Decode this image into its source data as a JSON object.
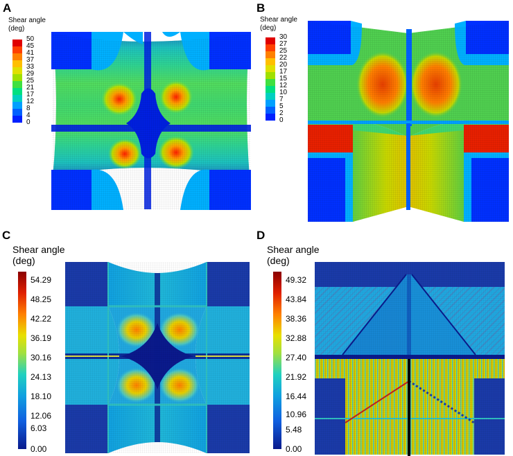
{
  "panels": [
    {
      "letter": "A",
      "title_line1": "Shear angle",
      "title_line2": "(deg)",
      "ticks": [
        "50",
        "45",
        "41",
        "37",
        "33",
        "29",
        "25",
        "21",
        "17",
        "12",
        "8",
        "4",
        "0"
      ]
    },
    {
      "letter": "B",
      "title_line1": "Shear angle",
      "title_line2": "(deg)",
      "ticks": [
        "30",
        "27",
        "25",
        "22",
        "20",
        "17",
        "15",
        "12",
        "10",
        "7",
        "5",
        "2",
        "0"
      ]
    },
    {
      "letter": "C",
      "title_line1": "Shear angle",
      "title_line2": "(deg)",
      "ticks": [
        "54.29",
        "48.25",
        "42.22",
        "36.19",
        "30.16",
        "24.13",
        "18.10",
        "12.06",
        "6.03",
        "0.00"
      ]
    },
    {
      "letter": "D",
      "title_line1": "Shear angle",
      "title_line2": "(deg)",
      "ticks": [
        "49.32",
        "43.84",
        "38.36",
        "32.88",
        "27.40",
        "21.92",
        "16.44",
        "10.96",
        "5.48",
        "0.00"
      ]
    }
  ],
  "colors": {
    "discrete": [
      "#e00000",
      "#ff4000",
      "#ff8000",
      "#ffbf00",
      "#e0e000",
      "#a0e000",
      "#40e040",
      "#00e080",
      "#00d0c0",
      "#00a0ff",
      "#0060ff",
      "#0020ff"
    ],
    "continuous": [
      "#8b0000",
      "#e02000",
      "#ff8000",
      "#e8e000",
      "#a0e040",
      "#20d0c0",
      "#10a0e0",
      "#1060e0",
      "#0a1a8c"
    ]
  }
}
